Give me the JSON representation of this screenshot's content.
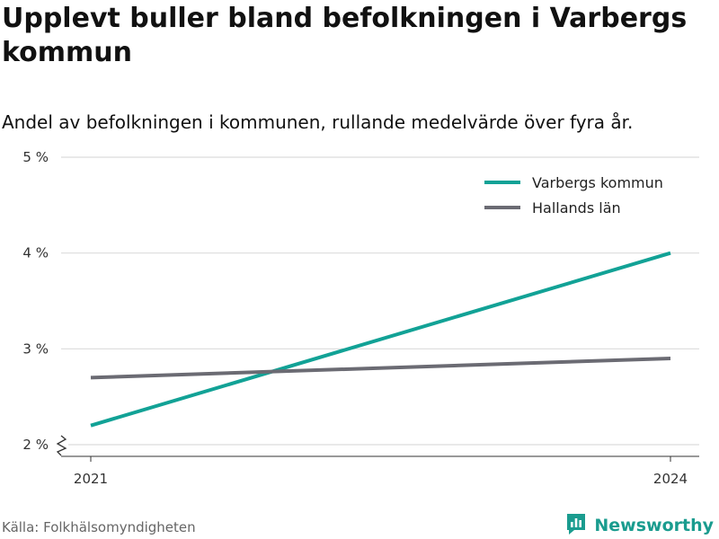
{
  "title": "Upplevt buller bland befolkningen i Varbergs kommun",
  "subtitle": "Andel av befolkningen i kommunen, rullande medelvärde över fyra år.",
  "source": "Källa: Folkhälsomyndigheten",
  "brand": {
    "name": "Newsworthy",
    "icon": "bar-chart-logo-icon",
    "color": "#1a9c8f"
  },
  "chart_data": {
    "type": "line",
    "x": [
      "2021",
      "2024"
    ],
    "series": [
      {
        "name": "Varbergs kommun",
        "values": [
          2.2,
          4.0
        ],
        "color": "#12a296"
      },
      {
        "name": "Hallands län",
        "values": [
          2.7,
          2.9
        ],
        "color": "#6b6b73"
      }
    ],
    "y_ticks": [
      2,
      3,
      4,
      5
    ],
    "y_tick_labels": [
      "2 %",
      "3 %",
      "4 %",
      "5 %"
    ],
    "ylim": [
      2,
      5
    ],
    "y_axis_break": true,
    "grid": true,
    "legend_position": "top-right"
  }
}
